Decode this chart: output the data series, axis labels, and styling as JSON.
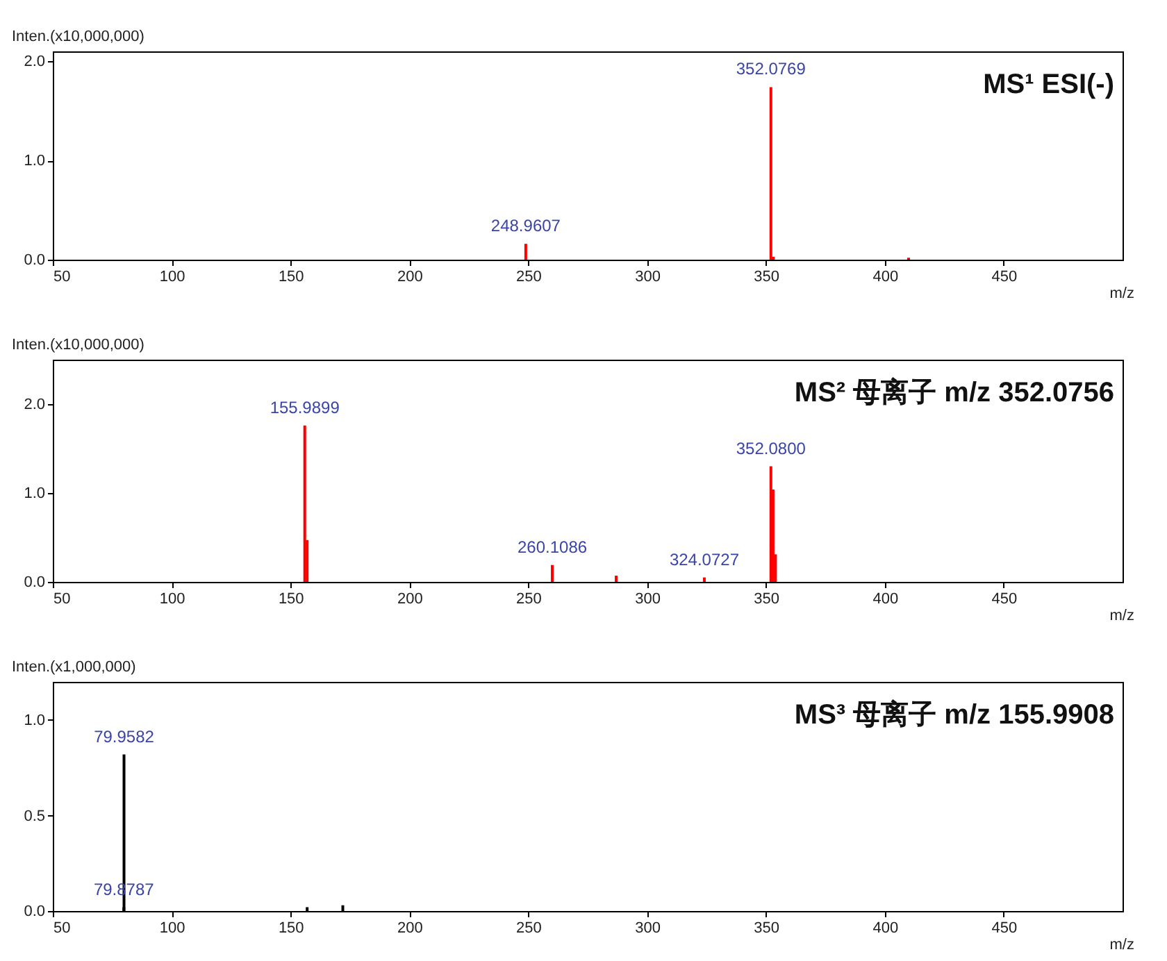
{
  "chart_data": [
    {
      "type": "bar",
      "title": "MS¹   ESI(-)",
      "ylabel": "Inten.(x10,000,000)",
      "xlabel": "m/z",
      "x": [
        248.9607,
        352.0769,
        353.1,
        410.0
      ],
      "series": [
        {
          "color": "#ff0000",
          "values": [
            0.16,
            1.74,
            0.03,
            0.02
          ]
        }
      ],
      "value_labels": [
        "248.9607",
        "352.0769",
        null,
        null
      ],
      "xlim": [
        50,
        500
      ],
      "xticks": [
        50,
        100,
        150,
        200,
        250,
        300,
        350,
        400,
        450
      ],
      "ylim": [
        0,
        2.1
      ],
      "yticks": [
        {
          "value": 0,
          "label": "0.0"
        },
        {
          "value": 1,
          "label": "1.0"
        },
        {
          "value": 2,
          "label": "2.0"
        }
      ],
      "grid": false
    },
    {
      "type": "bar",
      "title": "MS²   母离子 m/z 352.0756",
      "ylabel": "Inten.(x10,000,000)",
      "xlabel": "m/z",
      "x": [
        155.9899,
        157.0,
        260.1086,
        287.0,
        324.0727,
        352.08,
        353.0,
        354.0
      ],
      "series": [
        {
          "color": "#ff0000",
          "values": [
            1.76,
            0.47,
            0.19,
            0.07,
            0.05,
            1.3,
            1.04,
            0.31
          ]
        }
      ],
      "value_labels": [
        "155.9899",
        null,
        "260.1086",
        null,
        "324.0727",
        "352.0800",
        null,
        null
      ],
      "xlim": [
        50,
        500
      ],
      "xticks": [
        50,
        100,
        150,
        200,
        250,
        300,
        350,
        400,
        450
      ],
      "ylim": [
        0,
        2.5
      ],
      "yticks": [
        {
          "value": 0,
          "label": "0.0"
        },
        {
          "value": 1,
          "label": "1.0"
        },
        {
          "value": 2,
          "label": "2.0"
        }
      ],
      "grid": false
    },
    {
      "type": "bar",
      "title": "MS³   母离子 m/z 155.9908",
      "ylabel": "Inten.(x1,000,000)",
      "xlabel": "m/z",
      "x": [
        79.8787,
        79.9582,
        157.0,
        172.0
      ],
      "series": [
        {
          "color": "#000000",
          "values": [
            0.02,
            0.82,
            0.02,
            0.03
          ]
        }
      ],
      "value_labels": [
        "79.8787",
        "79.9582",
        null,
        null
      ],
      "xlim": [
        50,
        500
      ],
      "xticks": [
        50,
        100,
        150,
        200,
        250,
        300,
        350,
        400,
        450
      ],
      "ylim": [
        0,
        1.2
      ],
      "yticks": [
        {
          "value": 0,
          "label": "0.0"
        },
        {
          "value": 0.5,
          "label": "0.5"
        },
        {
          "value": 1,
          "label": "1.0"
        }
      ],
      "grid": false
    }
  ]
}
